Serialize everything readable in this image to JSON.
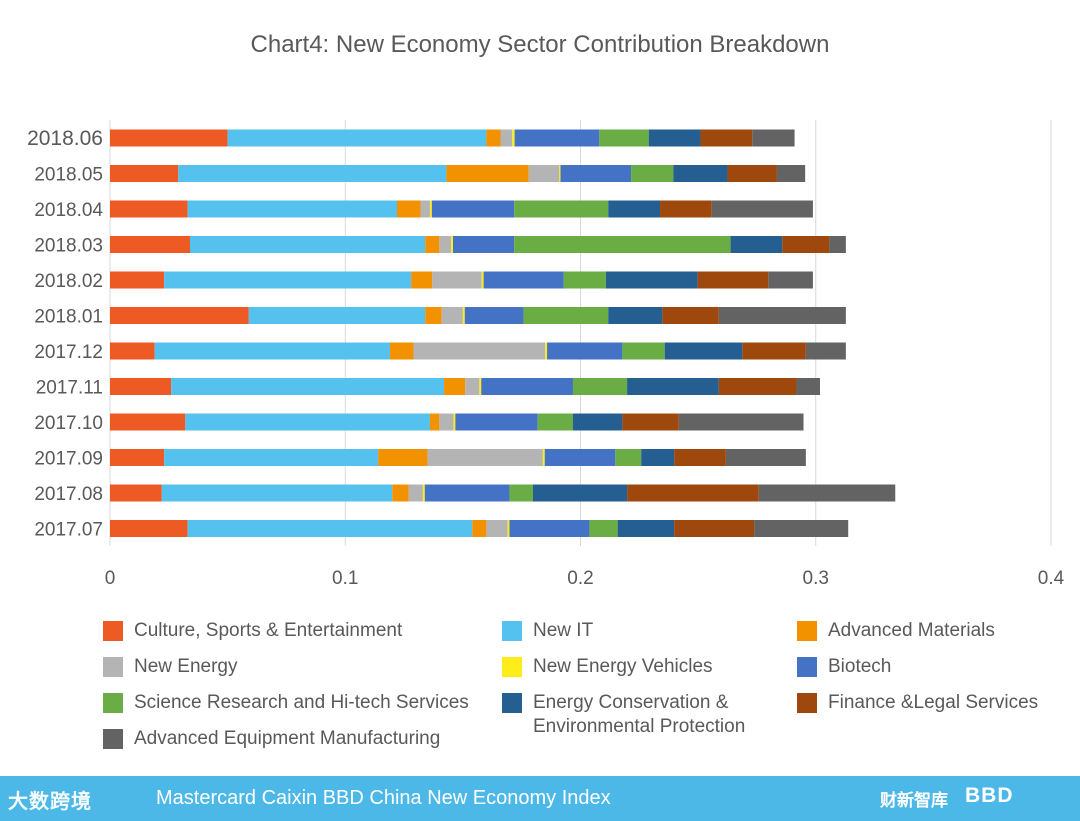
{
  "chart_data": {
    "type": "bar",
    "orientation": "horizontal",
    "stacked": true,
    "title": "Chart4: New Economy Sector Contribution Breakdown",
    "xlabel": "",
    "ylabel": "",
    "xlim": [
      0,
      0.4
    ],
    "x_ticks": [
      "0",
      "0.1",
      "0.2",
      "0.3",
      "0.4"
    ],
    "grid": true,
    "legend_position": "bottom",
    "categories": [
      "2018.06",
      "2018.05",
      "2018.04",
      "2018.03",
      "2018.02",
      "2018.01",
      "2017.12",
      "2017.11",
      "2017.10",
      "2017.09",
      "2017.08",
      "2017.07"
    ],
    "series": [
      {
        "name": "Culture, Sports & Entertainment",
        "color": "#ee5a24",
        "values": [
          0.05,
          0.029,
          0.033,
          0.034,
          0.023,
          0.059,
          0.019,
          0.026,
          0.032,
          0.023,
          0.022,
          0.033
        ]
      },
      {
        "name": "New IT",
        "color": "#55c1ee",
        "values": [
          0.11,
          0.114,
          0.089,
          0.1,
          0.105,
          0.075,
          0.1,
          0.116,
          0.104,
          0.091,
          0.098,
          0.121
        ]
      },
      {
        "name": "Advanced Materials",
        "color": "#f39200",
        "values": [
          0.006,
          0.035,
          0.01,
          0.006,
          0.009,
          0.007,
          0.01,
          0.009,
          0.004,
          0.021,
          0.007,
          0.006
        ]
      },
      {
        "name": "New Energy",
        "color": "#b4b4b4",
        "values": [
          0.005,
          0.013,
          0.004,
          0.005,
          0.021,
          0.009,
          0.056,
          0.006,
          0.006,
          0.049,
          0.006,
          0.009
        ]
      },
      {
        "name": "New Energy Vehicles",
        "color": "#ffec1a",
        "values": [
          0.001,
          0.0005,
          0.0008,
          0.0008,
          0.0008,
          0.0008,
          0.0008,
          0.0008,
          0.0008,
          0.0008,
          0.0008,
          0.0008
        ]
      },
      {
        "name": "Biotech",
        "color": "#4472c4",
        "values": [
          0.036,
          0.03,
          0.035,
          0.026,
          0.034,
          0.025,
          0.032,
          0.039,
          0.035,
          0.03,
          0.036,
          0.034
        ]
      },
      {
        "name": "Science Research and Hi-tech Services",
        "color": "#6aad45",
        "values": [
          0.021,
          0.018,
          0.04,
          0.092,
          0.018,
          0.036,
          0.018,
          0.023,
          0.015,
          0.011,
          0.01,
          0.012
        ]
      },
      {
        "name": "Energy Conservation & Environmental Protection",
        "color": "#255e91",
        "values": [
          0.022,
          0.023,
          0.022,
          0.022,
          0.039,
          0.023,
          0.033,
          0.039,
          0.021,
          0.014,
          0.04,
          0.024
        ]
      },
      {
        "name": "Finance &Legal Services",
        "color": "#9e480e",
        "values": [
          0.022,
          0.021,
          0.022,
          0.02,
          0.03,
          0.024,
          0.027,
          0.033,
          0.024,
          0.022,
          0.056,
          0.034
        ]
      },
      {
        "name": "Advanced Equipment Manufacturing",
        "color": "#636363",
        "values": [
          0.018,
          0.012,
          0.043,
          0.007,
          0.019,
          0.054,
          0.017,
          0.01,
          0.053,
          0.034,
          0.058,
          0.04
        ]
      }
    ]
  },
  "footer": {
    "index_name": "Mastercard Caixin BBD China New Economy Index",
    "left_logo_text": "大数跨境",
    "right_logo_1": "财新智库",
    "right_logo_2": "BBD"
  },
  "colors": {
    "footer_background": "#4cb8e8",
    "grid": "#d9d9d9",
    "text": "#595959"
  }
}
